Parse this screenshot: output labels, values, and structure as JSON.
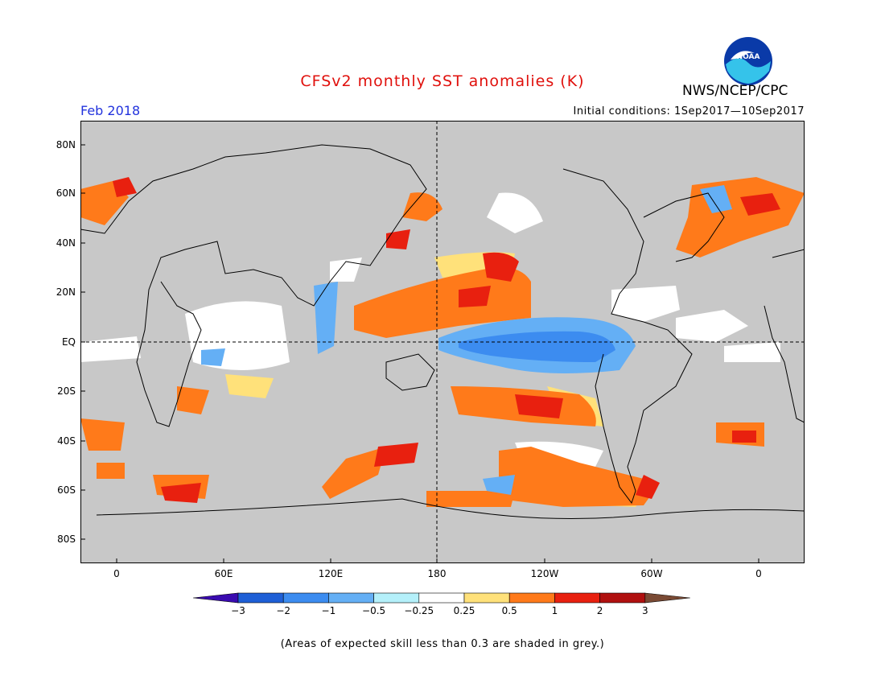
{
  "header": {
    "title": "CFSv2 monthly SST anomalies (K)",
    "agency": "NWS/NCEP/CPC",
    "period": "Feb 2018",
    "initial_conditions": "Initial conditions: 1Sep2017—10Sep2017",
    "logo_text": "NOAA"
  },
  "map": {
    "lat_labels": [
      "80N",
      "60N",
      "40N",
      "20N",
      "EQ",
      "20S",
      "40S",
      "60S",
      "80S"
    ],
    "lon_labels": [
      "0",
      "60E",
      "120E",
      "180",
      "120W",
      "60W",
      "0"
    ],
    "land_color": "#c8c8c8"
  },
  "colorbar": {
    "labels": [
      "−3",
      "−2",
      "−1",
      "−0.5",
      "−0.25",
      "0.25",
      "0.5",
      "1",
      "2",
      "3"
    ],
    "colors": [
      "#3a0bb0",
      "#1e5fd6",
      "#3c8cf0",
      "#64aff5",
      "#b4f0fa",
      "#ffffff",
      "#ffe17a",
      "#ff7a1a",
      "#e8200f",
      "#b0100f",
      "#7a4a34"
    ]
  },
  "footnote": "(Areas of expected skill less than 0.3 are shaded in grey.)"
}
